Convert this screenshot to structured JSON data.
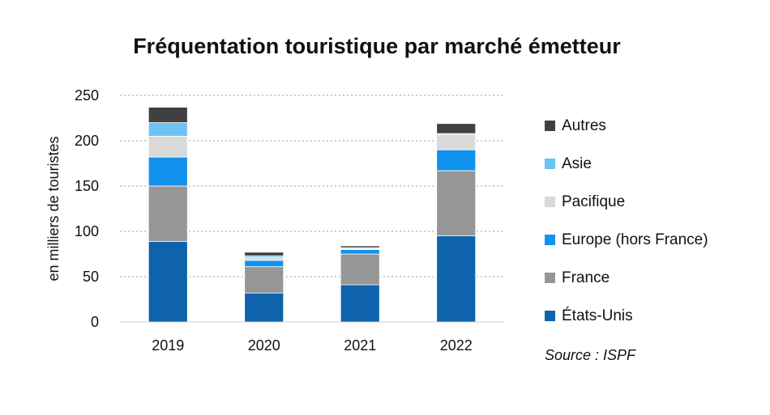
{
  "chart_data": {
    "type": "bar",
    "stacked": true,
    "title": "Fréquentation touristique par marché émetteur",
    "xlabel": "",
    "ylabel": "en milliers de touristes",
    "ylim": [
      0,
      250
    ],
    "yticks": [
      0,
      50,
      100,
      150,
      200,
      250
    ],
    "grid": "horizontal dotted",
    "legend_position": "right",
    "categories": [
      "2019",
      "2020",
      "2021",
      "2022"
    ],
    "series": [
      {
        "name": "États-Unis",
        "color": "#0f62ac",
        "values": [
          89,
          32,
          41,
          95
        ]
      },
      {
        "name": "France",
        "color": "#969696",
        "values": [
          61,
          29,
          34,
          72
        ]
      },
      {
        "name": "Europe (hors France)",
        "color": "#1192ee",
        "values": [
          32,
          7,
          5,
          23
        ]
      },
      {
        "name": "Pacifique",
        "color": "#d9d9d9",
        "values": [
          23,
          3,
          1,
          17
        ]
      },
      {
        "name": "Asie",
        "color": "#6ec3f5",
        "values": [
          15,
          2,
          1,
          1
        ]
      },
      {
        "name": "Autres",
        "color": "#404040",
        "values": [
          17,
          4,
          2,
          11
        ]
      }
    ],
    "source": "Source : ISPF"
  }
}
